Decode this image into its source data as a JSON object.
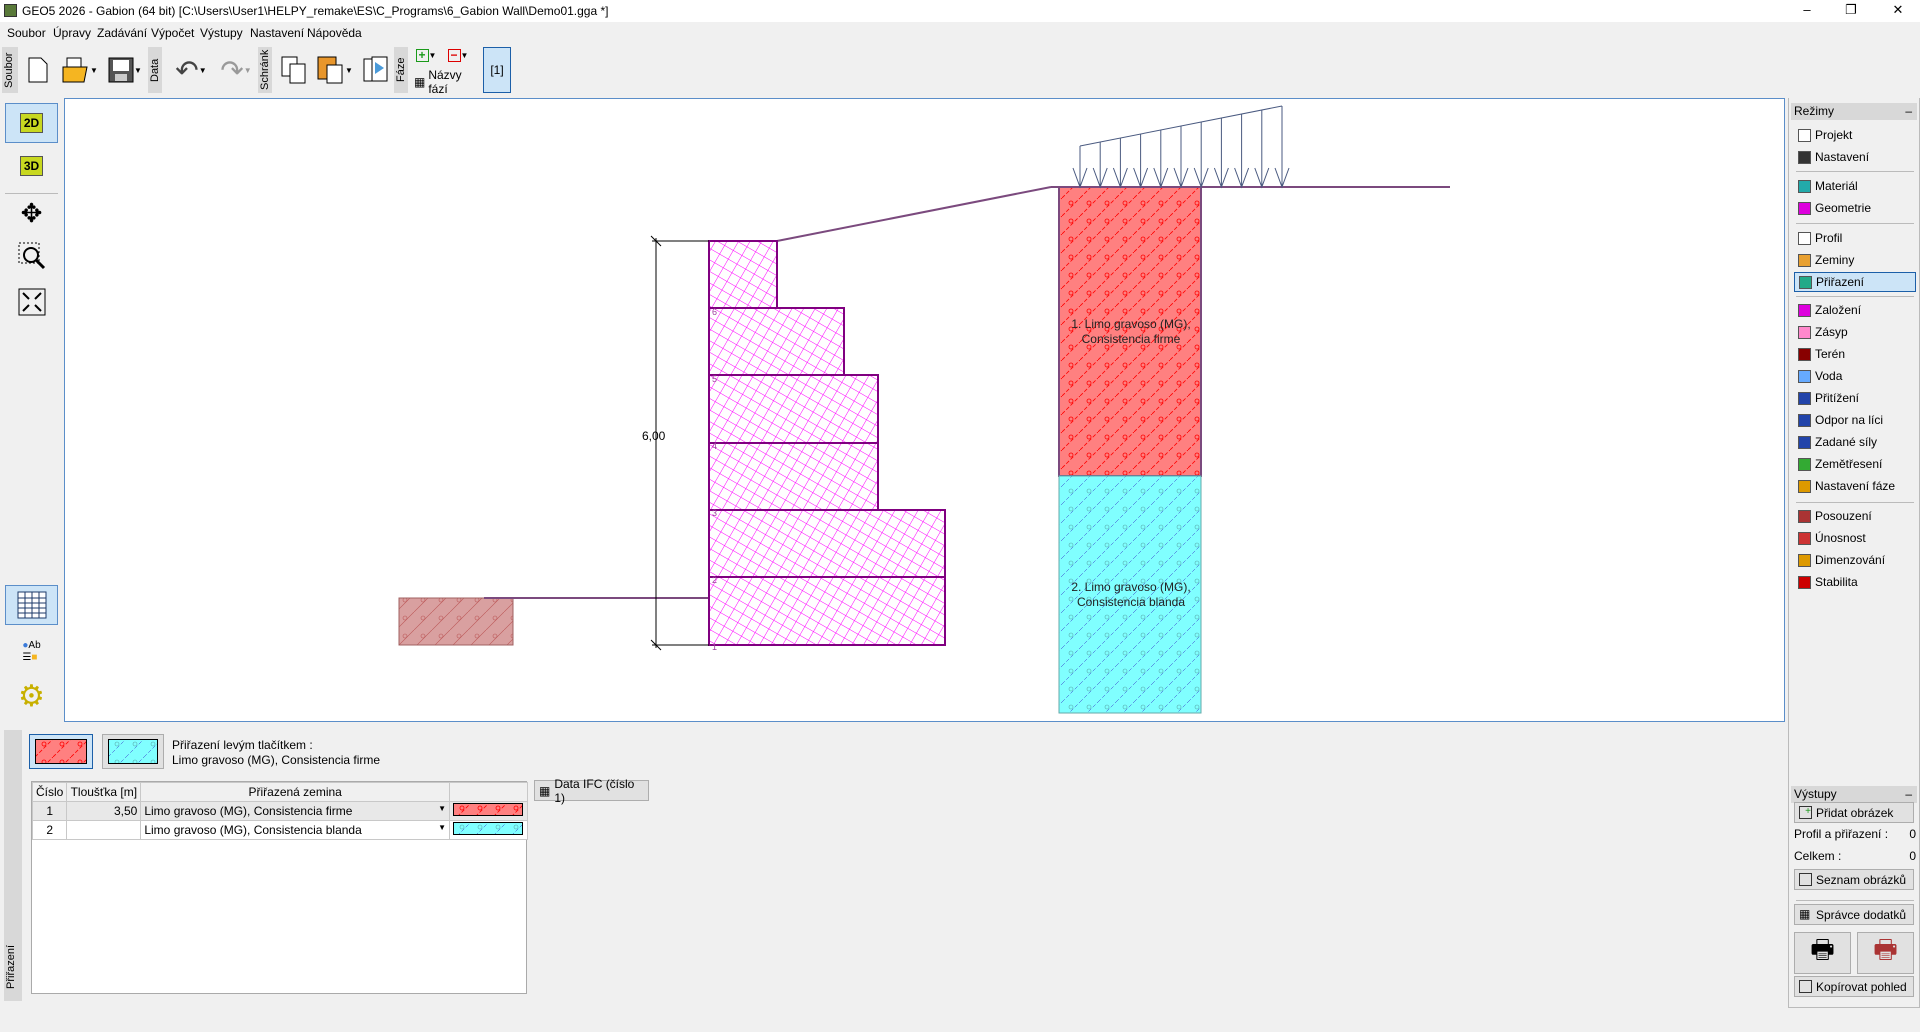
{
  "window": {
    "title": "GEO5 2026 - Gabion (64 bit) [C:\\Users\\User1\\HELPY_remake\\ES\\C_Programs\\6_Gabion Wall\\Demo01.gga *]",
    "minimize": "–",
    "restore": "❐",
    "close": "✕"
  },
  "menu": [
    "Soubor",
    "Úpravy",
    "Zadávání",
    "Výpočet",
    "Výstupy",
    "Nastavení",
    "Nápověda"
  ],
  "toolbar": {
    "group_file": "Soubor",
    "group_data": "Data",
    "group_clipboard": "Schránk",
    "group_phase": "Fáze",
    "phase_names": "Názvy fází",
    "phase_current": "[1]"
  },
  "left_tools": {
    "view2d": "2D",
    "view3d": "3D",
    "legend_ab": "Ab"
  },
  "drawing": {
    "dimension": "6,00",
    "block_numbers": [
      "1",
      "2",
      "3",
      "4",
      "5",
      "6"
    ],
    "soil1_label_line1": "1. Limo gravoso (MG),",
    "soil1_label_line2": "Consistencia firme",
    "soil2_label_line1": "2. Limo gravoso (MG),",
    "soil2_label_line2": "Consistencia blanda",
    "colors": {
      "gabion": "#ff00ff",
      "gabion_outline": "#800080",
      "soil1": "#ff8080",
      "soil2": "#80ffff",
      "terrain": "#7b4a7e",
      "load": "#4a5a80",
      "front_soil": "#d9a0a0"
    }
  },
  "bottom": {
    "tab": "Přiřazení",
    "assign_caption": "Přiřazení levým tlačítkem :",
    "assign_value": "Limo gravoso (MG), Consistencia firme",
    "ifc_button": "Data IFC (číslo 1)",
    "table": {
      "headers": [
        "Číslo",
        "Tloušťka [m]",
        "Přiřazená zemina",
        ""
      ],
      "rows": [
        {
          "num": "1",
          "thickness": "3,50",
          "soil": "Limo gravoso (MG), Consistencia firme",
          "color": "#ff8080"
        },
        {
          "num": "2",
          "thickness": "",
          "soil": "Limo gravoso (MG), Consistencia blanda",
          "color": "#80ffff"
        }
      ]
    }
  },
  "modes": {
    "title": "Režimy",
    "collapse": "–",
    "items": [
      "Projekt",
      "Nastavení",
      "Materiál",
      "Geometrie",
      "Profil",
      "Zeminy",
      "Přiřazení",
      "Založení",
      "Zásyp",
      "Terén",
      "Voda",
      "Přitížení",
      "Odpor na líci",
      "Zadané síly",
      "Zemětřesení",
      "Nastavení fáze",
      "Posouzení",
      "Únosnost",
      "Dimenzování",
      "Stabilita"
    ],
    "selected": "Přiřazení"
  },
  "outputs": {
    "title": "Výstupy",
    "collapse": "–",
    "add_picture": "Přidat obrázek",
    "profile_label": "Profil a přiřazení :",
    "profile_count": "0",
    "total_label": "Celkem :",
    "total_count": "0",
    "list_pictures": "Seznam obrázků",
    "appendix_manager": "Správce dodatků",
    "copy_view": "Kopírovat pohled"
  }
}
